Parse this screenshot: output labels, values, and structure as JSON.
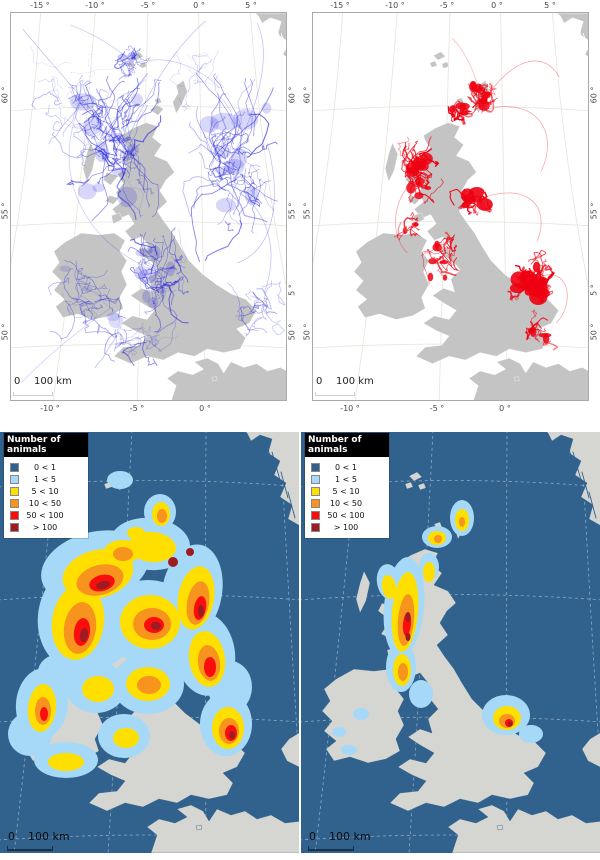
{
  "colors": {
    "track_blue": "#2222dd",
    "track_red": "#ee0011",
    "top_land": "#c4c4c4",
    "top_ocean": "#ffffff",
    "top_graticule": "#e8e3dc",
    "bottom_land": "#d5d5d1",
    "bottom_ocean": "#31628d",
    "class_0_1": "#31628d",
    "class_1_5": "#a6d9f7",
    "class_5_10": "#ffdf00",
    "class_10_50": "#f7941e",
    "class_50_100": "#fb0d0d",
    "class_gt100": "#9e1c21"
  },
  "top_left_map": {
    "axis_top": [
      "-15 °",
      "-10 °",
      "-5 °",
      "0 °",
      "5 °"
    ],
    "axis_bottom": [
      "-10 °",
      "-5 °",
      "0 °"
    ],
    "axis_left": [
      "60 °",
      "55 °",
      "50 °"
    ],
    "axis_right": [
      "60 °",
      "55 °",
      "5 °",
      "50 °"
    ],
    "scale_zero": "0",
    "scale_distance": "100 km"
  },
  "top_right_map": {
    "axis_top": [
      "-15 °",
      "-10 °",
      "-5 °",
      "0 °",
      "5 °"
    ],
    "axis_bottom": [
      "-10 °",
      "-5 °",
      "0 °"
    ],
    "axis_left": [
      "60 °",
      "55 °",
      "50 °"
    ],
    "axis_right": [
      "60 °",
      "55 °",
      "5 °",
      "50 °"
    ],
    "scale_zero": "0",
    "scale_distance": "100 km"
  },
  "legend": {
    "title": "Number of animals",
    "items": [
      {
        "label": "0 < 1",
        "color": "#31628d"
      },
      {
        "label": "1 < 5",
        "color": "#a6d9f7"
      },
      {
        "label": "5 < 10",
        "color": "#ffdf00"
      },
      {
        "label": "10 < 50",
        "color": "#f7941e"
      },
      {
        "label": "50 < 100",
        "color": "#fb0d0d"
      },
      {
        "label": "> 100",
        "color": "#9e1c21"
      }
    ]
  },
  "bottom_left_map": {
    "scale_zero": "0",
    "scale_distance": "100 km"
  },
  "bottom_right_map": {
    "scale_zero": "0",
    "scale_distance": "100 km"
  }
}
